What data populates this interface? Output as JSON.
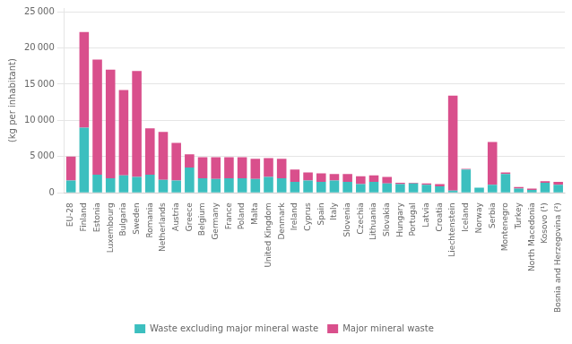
{
  "chart_data": {
    "type": "bar",
    "stacked": true,
    "ylabel": "(kg per inhabitant)",
    "categories": [
      "EU-28",
      "Finland",
      "Estonia",
      "Luxembourg",
      "Bulgaria",
      "Sweden",
      "Romania",
      "Netherlands",
      "Austria",
      "Greece",
      "Belgium",
      "Germany",
      "France",
      "Poland",
      "Malta",
      "United Kingdom",
      "Denmark",
      "Ireland",
      "Cyprus",
      "Spain",
      "Italy",
      "Slovenia",
      "Czechia",
      "Lithuania",
      "Slovakia",
      "Hungary",
      "Portugal",
      "Latvia",
      "Croatia",
      "Liechtenstein",
      "Iceland",
      "Norway",
      "Serbia",
      "Montenegro",
      "Turkey",
      "North Macedonia",
      "Kosovo (¹)",
      "Bosnia and Herzegovina (²)"
    ],
    "series": [
      {
        "name": "Waste excluding major mineral waste",
        "color": "#3cbfbf",
        "values": [
          1700,
          9000,
          2500,
          2000,
          2400,
          2200,
          2500,
          1800,
          1700,
          3500,
          2000,
          1900,
          2000,
          2000,
          1900,
          2200,
          2000,
          1500,
          1700,
          1500,
          1700,
          1500,
          1200,
          1500,
          1300,
          1200,
          1300,
          1100,
          900,
          300,
          3200,
          700,
          1100,
          2600,
          600,
          400,
          1400,
          1100
        ]
      },
      {
        "name": "Major mineral waste",
        "color": "#d94f8c",
        "values": [
          3300,
          13200,
          15900,
          15000,
          11800,
          14600,
          6400,
          6600,
          5200,
          1800,
          2900,
          3000,
          2900,
          2900,
          2800,
          2600,
          2700,
          1700,
          1100,
          1200,
          900,
          1100,
          1100,
          900,
          900,
          200,
          100,
          200,
          300,
          13100,
          100,
          0,
          5900,
          200,
          200,
          200,
          200,
          400
        ]
      }
    ],
    "ylim": [
      0,
      25500
    ],
    "yticks": [
      0,
      {
        "value": 5000,
        "label": "5 000"
      },
      {
        "value": 10000,
        "label": "10 000"
      },
      {
        "value": 15000,
        "label": "15 000"
      },
      {
        "value": 20000,
        "label": "20 000"
      },
      {
        "value": 25000,
        "label": "25 000"
      }
    ],
    "grid": true,
    "legend": "bottom"
  }
}
